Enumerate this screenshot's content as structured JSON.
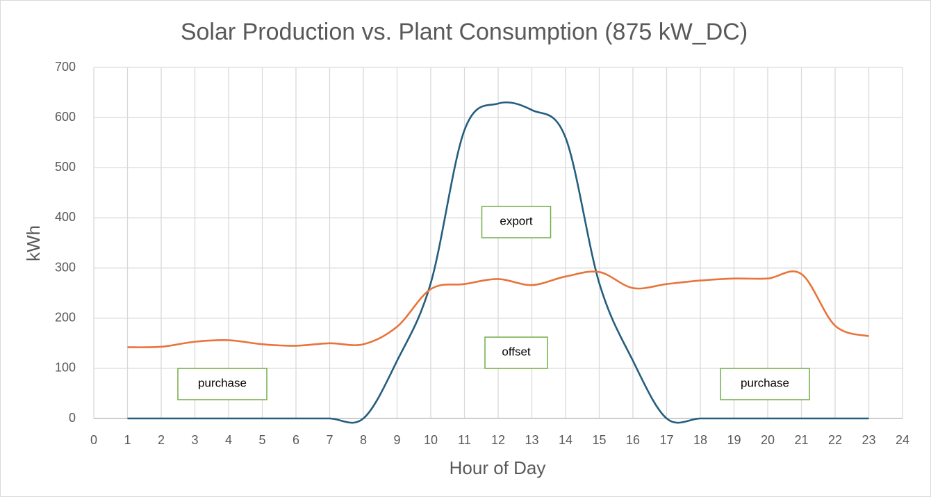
{
  "chart_data": {
    "type": "line",
    "title": "Solar Production vs. Plant Consumption (875 kW_DC)",
    "x_label": "Hour of Day",
    "y_label": "kWh",
    "x": [
      1,
      2,
      3,
      4,
      5,
      6,
      7,
      8,
      9,
      10,
      11,
      12,
      13,
      14,
      15,
      16,
      17,
      18,
      19,
      20,
      21,
      22,
      23
    ],
    "series": [
      {
        "color": "#245e7f",
        "values": [
          0,
          0,
          0,
          0,
          0,
          0,
          0,
          0,
          115,
          270,
          575,
          628,
          615,
          560,
          270,
          115,
          0,
          0,
          0,
          0,
          0,
          0,
          0
        ]
      },
      {
        "color": "#e8743b",
        "values": [
          142,
          143,
          153,
          156,
          148,
          145,
          150,
          148,
          183,
          258,
          268,
          278,
          266,
          283,
          292,
          260,
          268,
          275,
          279,
          279,
          288,
          185,
          164
        ]
      }
    ],
    "xlim": [
      0,
      24
    ],
    "xticks": [
      0,
      1,
      2,
      3,
      4,
      5,
      6,
      7,
      8,
      9,
      10,
      11,
      12,
      13,
      14,
      15,
      16,
      17,
      18,
      19,
      20,
      21,
      22,
      23,
      24
    ],
    "ylim": [
      0,
      700
    ],
    "yticks": [
      0,
      100,
      200,
      300,
      400,
      500,
      600,
      700
    ],
    "grid": true,
    "annotations": [
      "export",
      "offset",
      "purchase",
      "purchase"
    ]
  }
}
